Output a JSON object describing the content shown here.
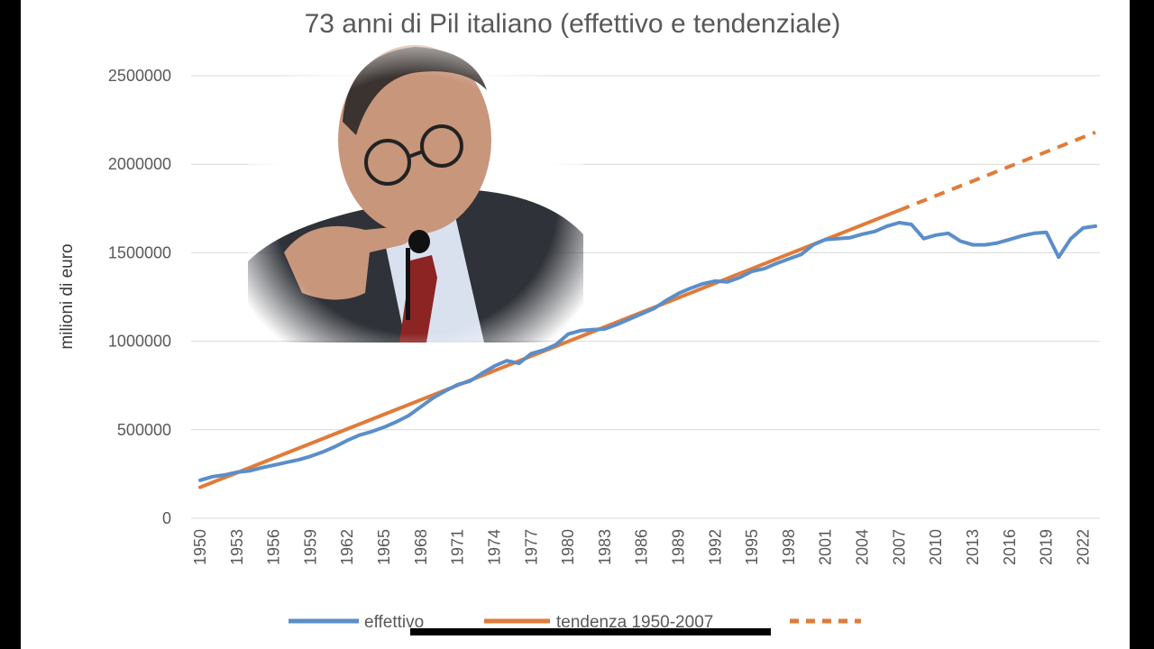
{
  "chart_data": {
    "type": "line",
    "title": "73 anni di Pil italiano (effettivo e tendenziale)",
    "ylabel": "milioni di euro",
    "xlabel": "",
    "ylim": [
      0,
      2500000
    ],
    "yticks": [
      "0",
      "500000",
      "1000000",
      "1500000",
      "2000000",
      "2500000"
    ],
    "xticks": [
      "1950",
      "1953",
      "1956",
      "1959",
      "1962",
      "1965",
      "1968",
      "1971",
      "1974",
      "1977",
      "1980",
      "1983",
      "1986",
      "1989",
      "1992",
      "1995",
      "1998",
      "2001",
      "2004",
      "2007",
      "2010",
      "2013",
      "2016",
      "2019",
      "2022"
    ],
    "grid": "horizontal",
    "legend_position": "bottom",
    "colors": {
      "effettivo": "#5b8ec9",
      "tendenza": "#e07b39",
      "gridline": "#d9d9d9"
    },
    "series": [
      {
        "name": "effettivo",
        "style": "solid",
        "x": [
          1950,
          1951,
          1952,
          1953,
          1954,
          1955,
          1956,
          1957,
          1958,
          1959,
          1960,
          1961,
          1962,
          1963,
          1964,
          1965,
          1966,
          1967,
          1968,
          1969,
          1970,
          1971,
          1972,
          1973,
          1974,
          1975,
          1976,
          1977,
          1978,
          1979,
          1980,
          1981,
          1982,
          1983,
          1984,
          1985,
          1986,
          1987,
          1988,
          1989,
          1990,
          1991,
          1992,
          1993,
          1994,
          1995,
          1996,
          1997,
          1998,
          1999,
          2000,
          2001,
          2002,
          2003,
          2004,
          2005,
          2006,
          2007,
          2008,
          2009,
          2010,
          2011,
          2012,
          2013,
          2014,
          2015,
          2016,
          2017,
          2018,
          2019,
          2020,
          2021,
          2022,
          2023
        ],
        "values": [
          215000,
          235000,
          245000,
          260000,
          268000,
          285000,
          300000,
          315000,
          330000,
          350000,
          375000,
          405000,
          440000,
          470000,
          490000,
          515000,
          545000,
          580000,
          630000,
          680000,
          720000,
          755000,
          775000,
          820000,
          860000,
          890000,
          875000,
          930000,
          950000,
          980000,
          1040000,
          1060000,
          1065000,
          1070000,
          1095000,
          1125000,
          1155000,
          1185000,
          1230000,
          1270000,
          1300000,
          1325000,
          1340000,
          1335000,
          1360000,
          1395000,
          1410000,
          1440000,
          1465000,
          1490000,
          1545000,
          1575000,
          1580000,
          1585000,
          1605000,
          1620000,
          1650000,
          1670000,
          1660000,
          1580000,
          1600000,
          1610000,
          1565000,
          1545000,
          1545000,
          1555000,
          1575000,
          1595000,
          1610000,
          1615000,
          1475000,
          1580000,
          1640000,
          1650000
        ]
      },
      {
        "name": "tendenza 1950-2007",
        "style": "solid",
        "x": [
          1950,
          2007
        ],
        "values": [
          175000,
          1740000
        ]
      },
      {
        "name": "",
        "style": "dashed",
        "x": [
          2007,
          2023
        ],
        "values": [
          1740000,
          2180000
        ]
      }
    ]
  },
  "photo": {
    "description_icon": "man-with-glasses-portrait",
    "colors": {
      "suit": "#2f3238",
      "shirt": "#d9e0ee",
      "tie": "#8c2424",
      "skin": "#c8967b",
      "hair": "#3a3330"
    }
  }
}
